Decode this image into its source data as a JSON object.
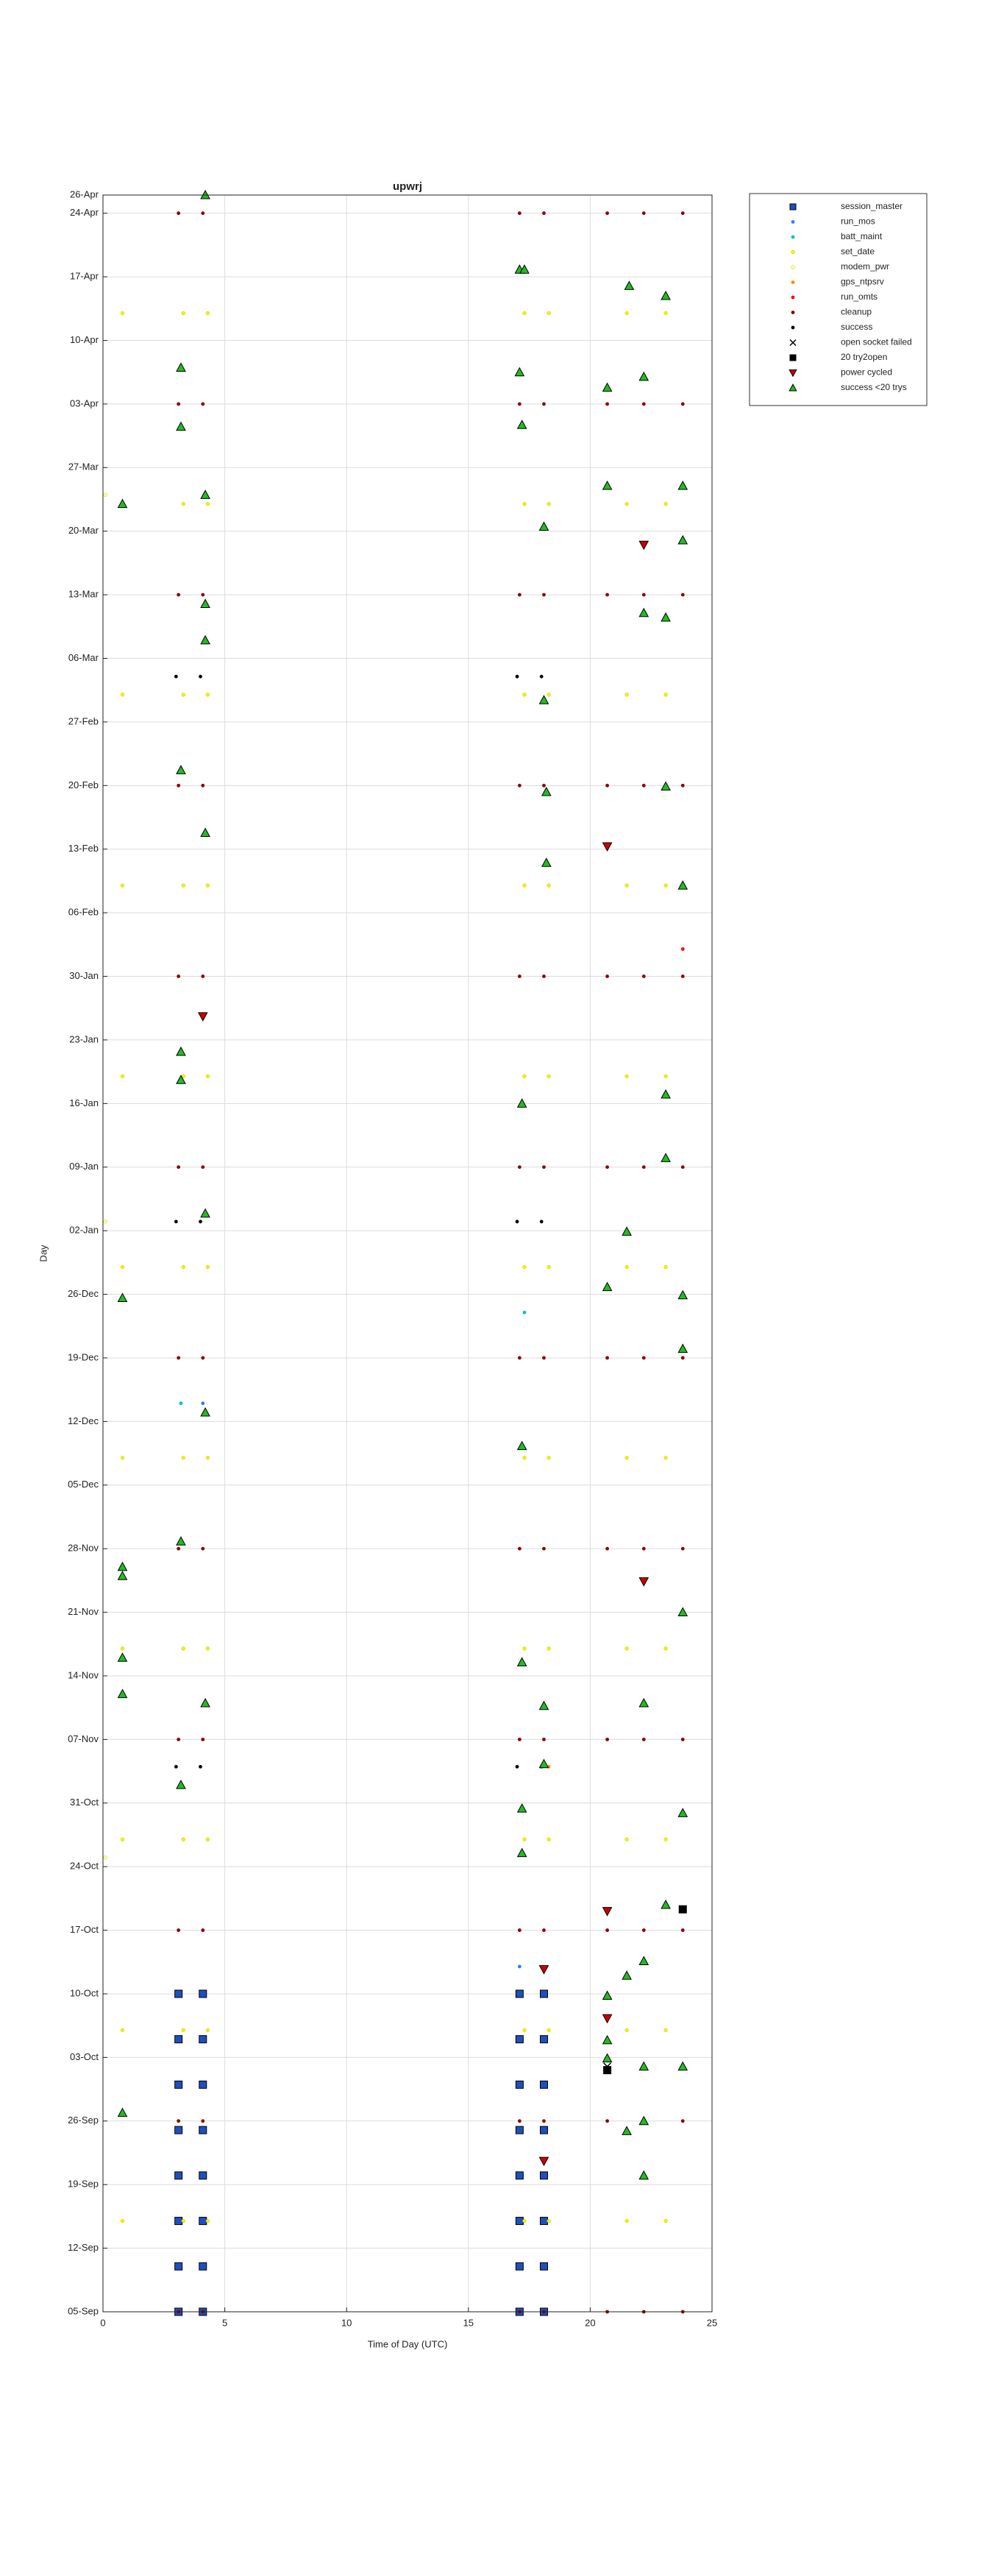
{
  "chart_data": {
    "type": "scatter",
    "title": "upwrj",
    "xlabel": "Time of Day (UTC)",
    "ylabel": "Day",
    "xlim": [
      0,
      25
    ],
    "xticks": [
      0,
      5,
      10,
      15,
      20,
      25
    ],
    "ylim": [
      0,
      233
    ],
    "yticks": [
      {
        "value": 0,
        "label": "05-Sep"
      },
      {
        "value": 7,
        "label": "12-Sep"
      },
      {
        "value": 14,
        "label": "19-Sep"
      },
      {
        "value": 21,
        "label": "26-Sep"
      },
      {
        "value": 28,
        "label": "03-Oct"
      },
      {
        "value": 35,
        "label": "10-Oct"
      },
      {
        "value": 42,
        "label": "17-Oct"
      },
      {
        "value": 49,
        "label": "24-Oct"
      },
      {
        "value": 56,
        "label": "31-Oct"
      },
      {
        "value": 63,
        "label": "07-Nov"
      },
      {
        "value": 70,
        "label": "14-Nov"
      },
      {
        "value": 77,
        "label": "21-Nov"
      },
      {
        "value": 84,
        "label": "28-Nov"
      },
      {
        "value": 91,
        "label": "05-Dec"
      },
      {
        "value": 98,
        "label": "12-Dec"
      },
      {
        "value": 105,
        "label": "19-Dec"
      },
      {
        "value": 112,
        "label": "26-Dec"
      },
      {
        "value": 119,
        "label": "02-Jan"
      },
      {
        "value": 126,
        "label": "09-Jan"
      },
      {
        "value": 133,
        "label": "16-Jan"
      },
      {
        "value": 140,
        "label": "23-Jan"
      },
      {
        "value": 147,
        "label": "30-Jan"
      },
      {
        "value": 154,
        "label": "06-Feb"
      },
      {
        "value": 161,
        "label": "13-Feb"
      },
      {
        "value": 168,
        "label": "20-Feb"
      },
      {
        "value": 175,
        "label": "27-Feb"
      },
      {
        "value": 182,
        "label": "06-Mar"
      },
      {
        "value": 189,
        "label": "13-Mar"
      },
      {
        "value": 196,
        "label": "20-Mar"
      },
      {
        "value": 203,
        "label": "27-Mar"
      },
      {
        "value": 210,
        "label": "03-Apr"
      },
      {
        "value": 217,
        "label": "10-Apr"
      },
      {
        "value": 224,
        "label": "17-Apr"
      },
      {
        "value": 231,
        "label": "24-Apr"
      },
      {
        "value": 233,
        "label": "26-Apr"
      }
    ],
    "grid": true,
    "legend": "outside-right",
    "series": [
      {
        "name": "session_master",
        "color": "#1f4fbf",
        "marker": "square",
        "x": [
          3.1,
          3.1,
          3.1,
          3.1,
          3.1,
          3.1,
          3.1,
          3.1,
          4.1,
          4.1,
          4.1,
          4.1,
          4.1,
          4.1,
          4.1,
          4.1,
          17.1,
          17.1,
          17.1,
          17.1,
          17.1,
          17.1,
          17.1,
          17.1,
          18.1,
          18.1,
          18.1,
          18.1,
          18.1,
          18.1,
          18.1,
          18.1
        ],
        "y": [
          0,
          5,
          10,
          15,
          20,
          25,
          30,
          35,
          0,
          5,
          10,
          15,
          20,
          25,
          30,
          35,
          0,
          5,
          10,
          15,
          20,
          25,
          30,
          35,
          0,
          5,
          10,
          15,
          20,
          25,
          30,
          35
        ]
      },
      {
        "name": "run_mos",
        "color": "#2a7fff",
        "marker": "dot",
        "x": [
          17.1,
          4.1
        ],
        "y": [
          38,
          100
        ]
      },
      {
        "name": "batt_maint",
        "color": "#00bfbf",
        "marker": "dot",
        "x": [
          3.2,
          17.3
        ],
        "y": [
          100,
          110
        ]
      },
      {
        "name": "set_date",
        "color": "#f2f200",
        "marker": "dot",
        "x": [
          0.8,
          0.8,
          0.8,
          0.8,
          0.8,
          0.8,
          0.8,
          0.8,
          0.8,
          0.8,
          0.8,
          3.3,
          3.3,
          3.3,
          3.3,
          3.3,
          3.3,
          3.3,
          3.3,
          3.3,
          3.3,
          3.3,
          4.3,
          4.3,
          4.3,
          4.3,
          4.3,
          4.3,
          4.3,
          4.3,
          4.3,
          4.3,
          4.3,
          17.3,
          17.3,
          17.3,
          17.3,
          17.3,
          17.3,
          17.3,
          17.3,
          17.3,
          17.3,
          17.3,
          18.3,
          18.3,
          18.3,
          18.3,
          18.3,
          18.3,
          18.3,
          18.3,
          18.3,
          18.3,
          18.3,
          21.5,
          21.5,
          21.5,
          21.5,
          21.5,
          21.5,
          21.5,
          21.5,
          21.5,
          21.5,
          21.5,
          23.1,
          23.1,
          23.1,
          23.1,
          23.1,
          23.1,
          23.1,
          23.1,
          23.1,
          23.1,
          23.1
        ],
        "y": [
          10,
          31,
          52,
          73,
          94,
          115,
          136,
          157,
          178,
          199,
          220,
          10,
          31,
          52,
          73,
          94,
          115,
          136,
          157,
          178,
          199,
          220,
          10,
          31,
          52,
          73,
          94,
          115,
          136,
          157,
          178,
          199,
          220,
          10,
          31,
          52,
          73,
          94,
          115,
          136,
          157,
          178,
          199,
          220,
          10,
          31,
          52,
          73,
          94,
          115,
          136,
          157,
          178,
          199,
          220,
          10,
          31,
          52,
          73,
          94,
          115,
          136,
          157,
          178,
          199,
          220,
          10,
          31,
          52,
          73,
          94,
          115,
          136,
          157,
          178,
          199,
          220
        ]
      },
      {
        "name": "modem_pwr",
        "color": "#ffffa0",
        "marker": "dot",
        "x": [
          0.1,
          0.1,
          0.1
        ],
        "y": [
          50,
          120,
          200
        ]
      },
      {
        "name": "gps_ntpsrv",
        "color": "#ff8c00",
        "marker": "dot",
        "x": [
          18.3
        ],
        "y": [
          60
        ]
      },
      {
        "name": "run_omts",
        "color": "#ff0000",
        "marker": "dot",
        "x": [
          23.8
        ],
        "y": [
          150
        ]
      },
      {
        "name": "cleanup",
        "color": "#8b0000",
        "marker": "dot",
        "x": [
          3.1,
          3.1,
          3.1,
          3.1,
          3.1,
          3.1,
          3.1,
          3.1,
          3.1,
          3.1,
          3.1,
          3.1,
          4.1,
          4.1,
          4.1,
          4.1,
          4.1,
          4.1,
          4.1,
          4.1,
          4.1,
          4.1,
          4.1,
          4.1,
          17.1,
          17.1,
          17.1,
          17.1,
          17.1,
          17.1,
          17.1,
          17.1,
          17.1,
          17.1,
          17.1,
          17.1,
          18.1,
          18.1,
          18.1,
          18.1,
          18.1,
          18.1,
          18.1,
          18.1,
          18.1,
          18.1,
          18.1,
          18.1,
          20.7,
          20.7,
          20.7,
          20.7,
          20.7,
          20.7,
          20.7,
          20.7,
          20.7,
          20.7,
          20.7,
          20.7,
          22.2,
          22.2,
          22.2,
          22.2,
          22.2,
          22.2,
          22.2,
          22.2,
          22.2,
          22.2,
          22.2,
          22.2,
          23.8,
          23.8,
          23.8,
          23.8,
          23.8,
          23.8,
          23.8,
          23.8,
          23.8,
          23.8,
          23.8,
          23.8
        ],
        "y": [
          0,
          21,
          42,
          63,
          84,
          105,
          126,
          147,
          168,
          189,
          210,
          231,
          0,
          21,
          42,
          63,
          84,
          105,
          126,
          147,
          168,
          189,
          210,
          231,
          0,
          21,
          42,
          63,
          84,
          105,
          126,
          147,
          168,
          189,
          210,
          231,
          0,
          21,
          42,
          63,
          84,
          105,
          126,
          147,
          168,
          189,
          210,
          231,
          0,
          21,
          42,
          63,
          84,
          105,
          126,
          147,
          168,
          189,
          210,
          231,
          0,
          21,
          42,
          63,
          84,
          105,
          126,
          147,
          168,
          189,
          210,
          231,
          0,
          21,
          42,
          63,
          84,
          105,
          126,
          147,
          168,
          189,
          210,
          231
        ]
      },
      {
        "name": "success",
        "color": "#000000",
        "marker": "dot",
        "x": [
          3.0,
          3.0,
          3.0,
          4.0,
          4.0,
          4.0,
          17.0,
          17.0,
          17.0,
          18.0,
          18.0,
          18.0
        ],
        "y": [
          60,
          120,
          180,
          60,
          120,
          180,
          60,
          120,
          180,
          60,
          120,
          180
        ]
      },
      {
        "name": "open socket failed",
        "color": "#000000",
        "marker": "x",
        "x": [
          20.7
        ],
        "y": [
          27
        ]
      },
      {
        "name": "20 try2open",
        "color": "#000000",
        "marker": "square",
        "x": [
          23.8,
          20.7
        ],
        "y": [
          44.3,
          26.6
        ]
      },
      {
        "name": "power cycled",
        "color": "#cc0000",
        "marker": "triangle-down",
        "x": [
          4.1,
          20.7,
          22.2,
          22.2,
          20.7,
          20.7,
          18.1,
          18.1
        ],
        "y": [
          142.6,
          161.3,
          194.5,
          80.4,
          44.1,
          32.3,
          37.7,
          16.6
        ]
      },
      {
        "name": "success <20 trys",
        "color": "#22bb22",
        "marker": "triangle",
        "x": [
          4.2,
          17.1,
          17.3,
          21.6,
          23.1,
          3.2,
          17.1,
          20.7,
          22.2,
          3.2,
          17.2,
          0.8,
          4.2,
          20.7,
          23.8,
          23.8,
          18.1,
          4.2,
          4.2,
          22.2,
          23.1,
          18.1,
          3.2,
          18.2,
          23.1,
          4.2,
          18.2,
          23.8,
          3.2,
          3.2,
          17.2,
          23.1,
          23.1,
          4.2,
          21.5,
          20.7,
          23.8,
          0.8,
          23.8,
          4.2,
          17.2,
          3.2,
          0.8,
          0.8,
          23.8,
          0.8,
          17.2,
          0.8,
          4.2,
          22.2,
          18.1,
          18.1,
          3.2,
          17.2,
          23.8,
          17.2,
          23.1,
          22.2,
          21.5,
          20.7,
          20.7,
          20.7,
          22.2,
          23.8,
          0.8,
          22.2,
          21.5,
          22.2
        ],
        "y": [
          233,
          224.8,
          224.8,
          223,
          221.9,
          214,
          213.5,
          211.8,
          213,
          207.5,
          207.7,
          199,
          200,
          201,
          201,
          195,
          196.5,
          188,
          184,
          187,
          186.5,
          177.4,
          169.7,
          167.3,
          167.9,
          162.8,
          159.5,
          157,
          138.7,
          135.6,
          133,
          134,
          127,
          120.9,
          118.9,
          112.8,
          111.9,
          111.6,
          106,
          99,
          95.3,
          84.8,
          82,
          81,
          77,
          72,
          71.5,
          68,
          67,
          67,
          66.7,
          60.3,
          58,
          55.4,
          54.9,
          50.5,
          44.8,
          38.6,
          37,
          34.8,
          29.9,
          27.9,
          27,
          27,
          21.9,
          21,
          19.9,
          15
        ]
      }
    ]
  }
}
